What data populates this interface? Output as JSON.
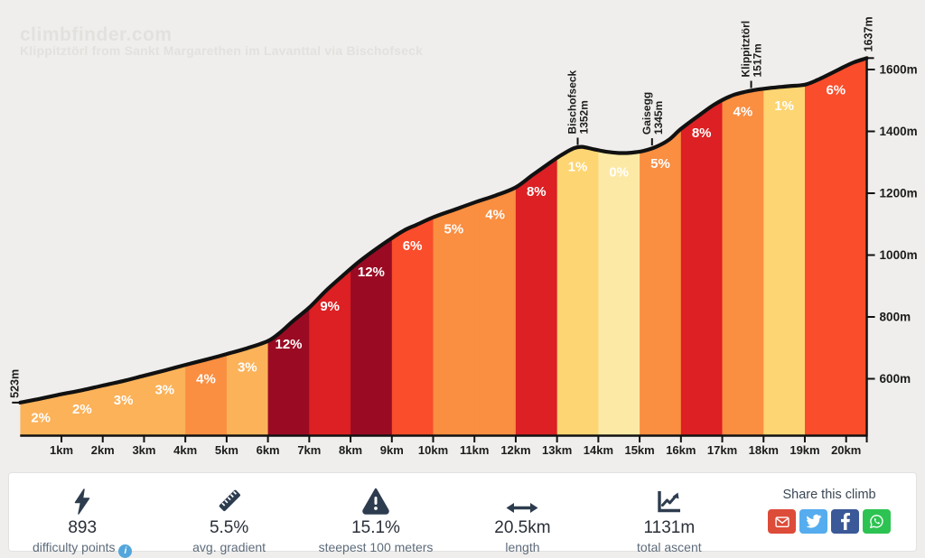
{
  "watermark": {
    "site": "climbfinder.com",
    "title": "Klippitztörl from Sankt Margarethen im Lavanttal via Bischofseck"
  },
  "chart_data": {
    "type": "area",
    "title": "Klippitztörl from Sankt Margarethen im Lavanttal via Bischofseck - climb elevation profile",
    "x_unit": "km",
    "y_unit": "m",
    "x_range_km": [
      0,
      20.5
    ],
    "y_axis_ticks_m": [
      600,
      800,
      1000,
      1200,
      1400,
      1600
    ],
    "x_axis_ticks_km": [
      1,
      2,
      3,
      4,
      5,
      6,
      7,
      8,
      9,
      10,
      11,
      12,
      13,
      14,
      15,
      16,
      17,
      18,
      19,
      20
    ],
    "start_label": "523m",
    "end_label": "1637m",
    "grid": false,
    "legend": false,
    "curve_color": "#111111",
    "axis_color": "#111111",
    "label_color": "#1c1c1c",
    "segment_label_color": "#ffffff",
    "segments": [
      {
        "from_km": 0,
        "to_km": 1,
        "gradient": "2%",
        "color": "#fbb259"
      },
      {
        "from_km": 1,
        "to_km": 2,
        "gradient": "2%",
        "color": "#fbb259"
      },
      {
        "from_km": 2,
        "to_km": 3,
        "gradient": "3%",
        "color": "#fbb259"
      },
      {
        "from_km": 3,
        "to_km": 4,
        "gradient": "3%",
        "color": "#fbb259"
      },
      {
        "from_km": 4,
        "to_km": 5,
        "gradient": "4%",
        "color": "#fa8e41"
      },
      {
        "from_km": 5,
        "to_km": 6,
        "gradient": "3%",
        "color": "#fbb259"
      },
      {
        "from_km": 6,
        "to_km": 7,
        "gradient": "12%",
        "color": "#9a0b23"
      },
      {
        "from_km": 7,
        "to_km": 8,
        "gradient": "9%",
        "color": "#dc2023"
      },
      {
        "from_km": 8,
        "to_km": 9,
        "gradient": "12%",
        "color": "#9a0b23"
      },
      {
        "from_km": 9,
        "to_km": 10,
        "gradient": "6%",
        "color": "#f94d2b"
      },
      {
        "from_km": 10,
        "to_km": 11,
        "gradient": "5%",
        "color": "#fa8e41"
      },
      {
        "from_km": 11,
        "to_km": 12,
        "gradient": "4%",
        "color": "#fa8e41"
      },
      {
        "from_km": 12,
        "to_km": 13,
        "gradient": "8%",
        "color": "#dc2023"
      },
      {
        "from_km": 13,
        "to_km": 14,
        "gradient": "1%",
        "color": "#fdd572"
      },
      {
        "from_km": 14,
        "to_km": 15,
        "gradient": "0%",
        "color": "#fde9a6"
      },
      {
        "from_km": 15,
        "to_km": 16,
        "gradient": "5%",
        "color": "#fa8e41"
      },
      {
        "from_km": 16,
        "to_km": 17,
        "gradient": "8%",
        "color": "#dc2023"
      },
      {
        "from_km": 17,
        "to_km": 18,
        "gradient": "4%",
        "color": "#fa8e41"
      },
      {
        "from_km": 18,
        "to_km": 19,
        "gradient": "1%",
        "color": "#fdd572"
      },
      {
        "from_km": 19,
        "to_km": 20.5,
        "gradient": "6%",
        "color": "#f94d2b"
      }
    ],
    "peaks": [
      {
        "name": "Bischofseck",
        "elevation": "1352m",
        "km": 13.5
      },
      {
        "name": "Gaisegg",
        "elevation": "1345m",
        "km": 15.3
      },
      {
        "name": "Klippitztörl",
        "elevation": "1517m",
        "km": 17.7
      }
    ],
    "profile_km_m": [
      [
        0,
        523
      ],
      [
        0.5,
        536
      ],
      [
        1,
        550
      ],
      [
        1.5,
        563
      ],
      [
        2,
        578
      ],
      [
        2.5,
        593
      ],
      [
        3,
        610
      ],
      [
        3.5,
        627
      ],
      [
        4,
        645
      ],
      [
        4.5,
        662
      ],
      [
        5,
        680
      ],
      [
        5.5,
        699
      ],
      [
        6,
        722
      ],
      [
        6.3,
        750
      ],
      [
        6.6,
        786
      ],
      [
        7,
        830
      ],
      [
        7.4,
        884
      ],
      [
        7.8,
        932
      ],
      [
        8.2,
        978
      ],
      [
        8.6,
        1018
      ],
      [
        9,
        1055
      ],
      [
        9.3,
        1080
      ],
      [
        9.6,
        1098
      ],
      [
        10,
        1122
      ],
      [
        10.5,
        1146
      ],
      [
        11,
        1170
      ],
      [
        11.5,
        1192
      ],
      [
        12,
        1219
      ],
      [
        12.4,
        1258
      ],
      [
        12.8,
        1296
      ],
      [
        13.1,
        1323
      ],
      [
        13.4,
        1345
      ],
      [
        13.6,
        1350
      ],
      [
        13.9,
        1342
      ],
      [
        14.2,
        1334
      ],
      [
        14.5,
        1330
      ],
      [
        14.8,
        1331
      ],
      [
        15.1,
        1337
      ],
      [
        15.4,
        1350
      ],
      [
        15.7,
        1372
      ],
      [
        16,
        1408
      ],
      [
        16.4,
        1448
      ],
      [
        16.8,
        1486
      ],
      [
        17.2,
        1514
      ],
      [
        17.5,
        1526
      ],
      [
        17.8,
        1534
      ],
      [
        18.2,
        1541
      ],
      [
        18.6,
        1546
      ],
      [
        19,
        1551
      ],
      [
        19.3,
        1566
      ],
      [
        19.7,
        1592
      ],
      [
        20,
        1612
      ],
      [
        20.2,
        1624
      ],
      [
        20.5,
        1637
      ]
    ]
  },
  "stats": [
    {
      "icon": "lightning-icon",
      "value": "893",
      "label": "difficulty points",
      "has_info": true
    },
    {
      "icon": "ruler-icon",
      "value": "5.5%",
      "label": "avg. gradient"
    },
    {
      "icon": "warning-icon",
      "value": "15.1%",
      "label": "steepest 100 meters"
    },
    {
      "icon": "arrows-icon",
      "value": "20.5km",
      "label": "length"
    },
    {
      "icon": "chart-icon",
      "value": "1131m",
      "label": "total ascent"
    }
  ],
  "share": {
    "title": "Share this climb",
    "buttons": [
      {
        "name": "email",
        "color": "#dd4b39"
      },
      {
        "name": "twitter",
        "color": "#55acee"
      },
      {
        "name": "facebook",
        "color": "#3b5998"
      },
      {
        "name": "whatsapp",
        "color": "#2dc352"
      }
    ]
  },
  "colors": {
    "page_background": "#efeeec",
    "card_background": "#ffffff",
    "icon_navy": "#2d3c4e",
    "info_blue": "#53a6dc",
    "watermark": "#e3e1de"
  }
}
